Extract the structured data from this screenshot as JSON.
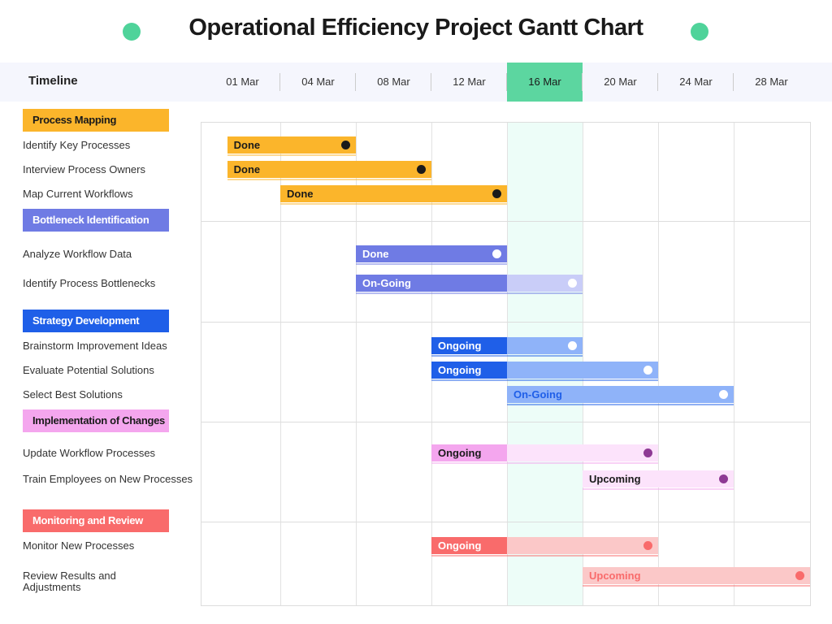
{
  "chart_data": {
    "type": "gantt",
    "title": "Operational Efficiency Project Gantt Chart",
    "timeline_label": "Timeline",
    "ticks": [
      "01 Mar",
      "04 Mar",
      "08 Mar",
      "12 Mar",
      "16 Mar",
      "20 Mar",
      "24 Mar",
      "28 Mar"
    ],
    "highlight_tick": "16 Mar",
    "groups": [
      {
        "name": "Process Mapping",
        "color": "#FBB52B",
        "light": "#FBB52B",
        "text": "#1a1a1a",
        "dot": "#1a1a1a",
        "tasks": [
          {
            "name": "Identify Key Processes",
            "status": "Done",
            "start": "02 Mar",
            "end": "08 Mar",
            "progress_end": "08 Mar"
          },
          {
            "name": "Interview Process Owners",
            "status": "Done",
            "start": "02 Mar",
            "end": "12 Mar",
            "progress_end": "12 Mar"
          },
          {
            "name": "Map Current Workflows",
            "status": "Done",
            "start": "04 Mar",
            "end": "16 Mar",
            "progress_end": "16 Mar"
          }
        ]
      },
      {
        "name": "Bottleneck Identification",
        "color": "#6F7BE4",
        "light": "#C9CDF8",
        "text": "#ffffff",
        "dot": "#ffffff",
        "tasks": [
          {
            "name": "Analyze Workflow Data",
            "status": "Done",
            "start": "08 Mar",
            "end": "16 Mar",
            "progress_end": "16 Mar"
          },
          {
            "name": "Identify Process Bottlenecks",
            "status": "On-Going",
            "start": "08 Mar",
            "end": "20 Mar",
            "progress_end": "16 Mar"
          }
        ]
      },
      {
        "name": "Strategy Development",
        "color": "#1F5FE8",
        "light": "#8FB3F9",
        "text": "#ffffff",
        "dot": "#ffffff",
        "tasks": [
          {
            "name": "Brainstorm Improvement Ideas",
            "status": "Ongoing",
            "start": "12 Mar",
            "end": "20 Mar",
            "progress_end": "16 Mar"
          },
          {
            "name": "Evaluate Potential Solutions",
            "status": "Ongoing",
            "start": "12 Mar",
            "end": "24 Mar",
            "progress_end": "16 Mar"
          },
          {
            "name": "Select Best Solutions",
            "status": "On-Going",
            "start": "16 Mar",
            "end": "28 Mar",
            "progress_end": "16 Mar",
            "label_color": "#1F5FE8"
          }
        ]
      },
      {
        "name": "Implementation of Changes",
        "color": "#F4A6EE",
        "light": "#FCE3FB",
        "text": "#1a1a1a",
        "dot": "#8E3A94",
        "tasks": [
          {
            "name": "Update Workflow Processes",
            "status": "Ongoing",
            "start": "12 Mar",
            "end": "24 Mar",
            "progress_end": "16 Mar"
          },
          {
            "name": "Train Employees on New Processes",
            "status": "Upcoming",
            "start": "20 Mar",
            "end": "28 Mar",
            "progress_end": "20 Mar"
          }
        ]
      },
      {
        "name": "Monitoring and Review",
        "color": "#F96B6B",
        "light": "#FBC8C8",
        "text": "#ffffff",
        "dot": "#F96B6B",
        "tasks": [
          {
            "name": "Monitor New Processes",
            "status": "Ongoing",
            "start": "12 Mar",
            "end": "24 Mar",
            "progress_end": "16 Mar"
          },
          {
            "name": "Review Results and Adjustments",
            "status": "Upcoming",
            "start": "20 Mar",
            "end": "01 Apr",
            "progress_end": "20 Mar",
            "label_color": "#F96B6B"
          }
        ]
      }
    ]
  }
}
